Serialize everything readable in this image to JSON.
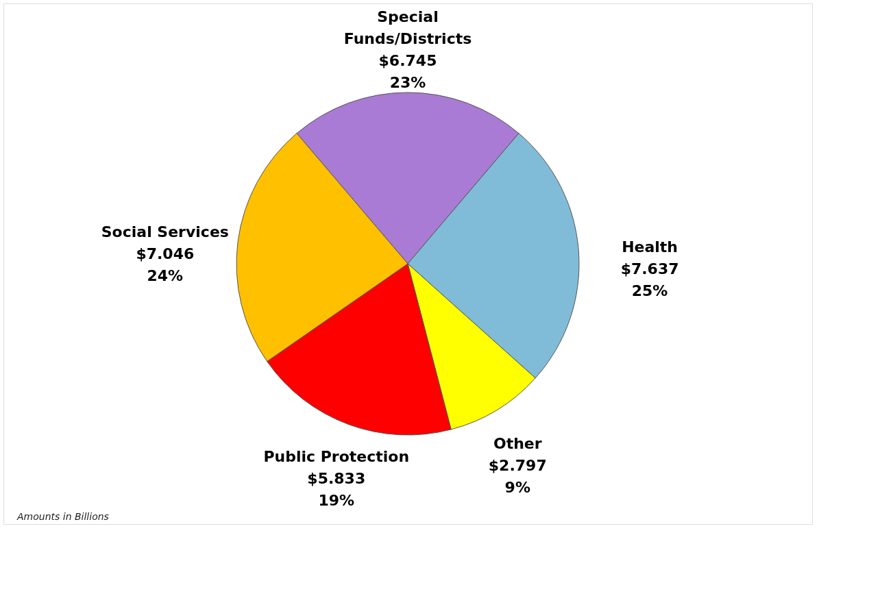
{
  "chart_data": {
    "type": "pie",
    "categories": [
      "Special Funds/Districts",
      "Health",
      "Other",
      "Public Protection",
      "Social Services"
    ],
    "values": [
      6.745,
      7.637,
      2.797,
      5.833,
      7.046
    ],
    "colors": [
      "#a97bd4",
      "#80bcd8",
      "#ffff00",
      "#ff0000",
      "#ffc000"
    ],
    "value_labels": [
      "$6.745 23%",
      "$7.637 25%",
      "$2.797 9%",
      "$5.833 19%",
      "$7.046 24%"
    ],
    "annotations": [
      "Amounts in Billions"
    ],
    "legend": false
  }
}
